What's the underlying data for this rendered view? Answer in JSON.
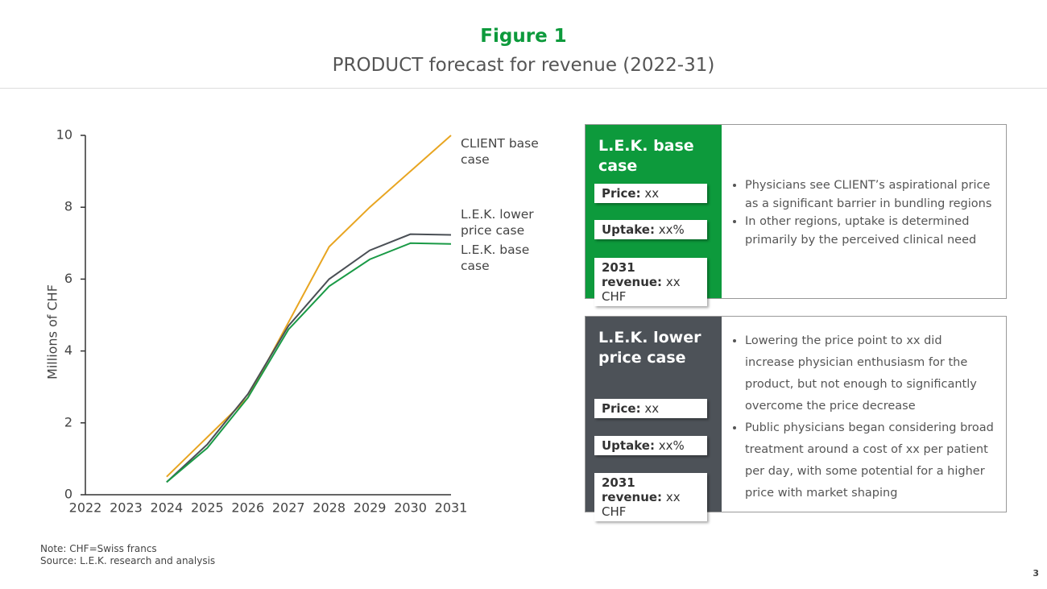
{
  "header": {
    "title": "Figure 1",
    "subtitle": "PRODUCT forecast for revenue (2022-31)"
  },
  "chart_data": {
    "type": "line",
    "y_label": "Millions of CHF",
    "categories": [
      "2022",
      "2023",
      "2024",
      "2025",
      "2026",
      "2027",
      "2028",
      "2029",
      "2030",
      "2031"
    ],
    "series": [
      {
        "name": "CLIENT base case",
        "color": "#e8a521",
        "values": [
          null,
          null,
          0.5,
          1.6,
          2.7,
          4.8,
          6.9,
          8.0,
          9.0,
          10.0
        ]
      },
      {
        "name": "L.E.K. lower price case",
        "color": "#4a4f55",
        "values": [
          null,
          null,
          0.35,
          1.4,
          2.8,
          4.7,
          6.0,
          6.8,
          7.25,
          7.23
        ]
      },
      {
        "name": "L.E.K. base case",
        "color": "#1a9a46",
        "values": [
          null,
          null,
          0.35,
          1.3,
          2.7,
          4.6,
          5.8,
          6.55,
          7.0,
          6.98
        ]
      }
    ],
    "ylim": [
      0,
      10
    ],
    "yticks": [
      0,
      2,
      4,
      6,
      8,
      10
    ],
    "grid": false
  },
  "panels": [
    {
      "title": "L.E.K. base case",
      "color": "#0d9a3c",
      "items": [
        {
          "label": "Price:",
          "value": "xx"
        },
        {
          "label": "Uptake:",
          "value": "xx%"
        },
        {
          "label": "2031 revenue:",
          "value": "xx CHF"
        }
      ],
      "bullets": [
        "Physicians see CLIENT’s aspirational price as a significant barrier in bundling regions",
        "In other regions, uptake is determined primarily by the perceived clinical need"
      ]
    },
    {
      "title": "L.E.K. lower price case",
      "color": "#4d5258",
      "items": [
        {
          "label": "Price:",
          "value": "xx"
        },
        {
          "label": "Uptake:",
          "value": "xx%"
        },
        {
          "label": "2031 revenue:",
          "value": "xx CHF"
        }
      ],
      "bullets": [
        "Lowering the price point to xx did increase physician enthusiasm for the product, but not enough to significantly overcome the price decrease",
        "Public physicians began considering broad treatment around a cost of xx per patient per day, with some potential for a higher price with market shaping"
      ]
    }
  ],
  "footer": {
    "note": "Note: CHF=Swiss francs",
    "source": "Source: L.E.K. research and analysis",
    "page": "3"
  }
}
